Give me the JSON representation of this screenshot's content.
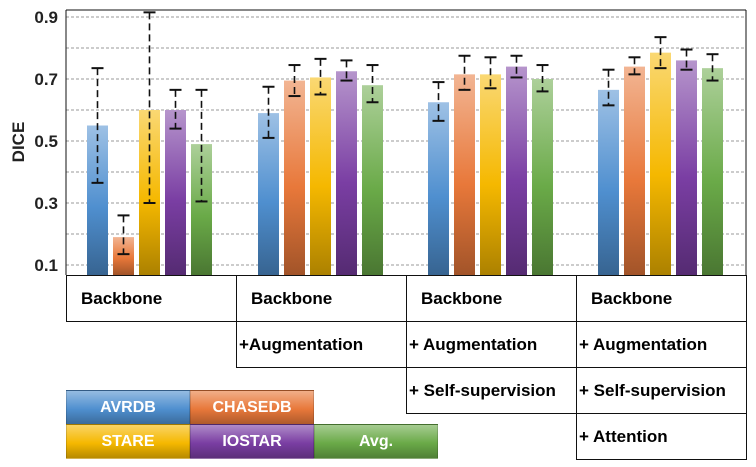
{
  "chart_data": {
    "type": "bar",
    "ylabel": "DICE",
    "yticks": [
      "0.1",
      "0.3",
      "0.5",
      "0.7",
      "0.9"
    ],
    "ylim": [
      0.1,
      0.9
    ],
    "grid": "dashed horizontal",
    "groups": [
      {
        "lines": [
          "Backbone"
        ]
      },
      {
        "lines": [
          "Backbone",
          "+Augmentation"
        ]
      },
      {
        "lines": [
          "Backbone",
          "+ Augmentation",
          "+ Self-supervision"
        ]
      },
      {
        "lines": [
          "Backbone",
          "+ Augmentation",
          "+ Self-supervision",
          "+ Attention"
        ]
      }
    ],
    "series": [
      {
        "name": "AVRDB",
        "color": "#4f8fcf",
        "values": [
          0.55,
          0.59,
          0.625,
          0.665
        ],
        "err_low": [
          0.365,
          0.51,
          0.565,
          0.615
        ],
        "err_high": [
          0.735,
          0.675,
          0.69,
          0.73
        ]
      },
      {
        "name": "CHASEDB",
        "color": "#e8783a",
        "values": [
          0.19,
          0.695,
          0.715,
          0.74
        ],
        "err_low": [
          0.135,
          0.645,
          0.665,
          0.715
        ],
        "err_high": [
          0.26,
          0.745,
          0.775,
          0.77
        ]
      },
      {
        "name": "STARE",
        "color": "#f5b800",
        "values": [
          0.6,
          0.705,
          0.715,
          0.785
        ],
        "err_low": [
          0.3,
          0.65,
          0.67,
          0.735
        ],
        "err_high": [
          0.915,
          0.765,
          0.77,
          0.835
        ]
      },
      {
        "name": "IOSTAR",
        "color": "#7a3ea3",
        "values": [
          0.6,
          0.725,
          0.74,
          0.76
        ],
        "err_low": [
          0.54,
          0.695,
          0.705,
          0.73
        ],
        "err_high": [
          0.665,
          0.76,
          0.775,
          0.795
        ]
      },
      {
        "name": "Avg.",
        "color": "#6aaa48",
        "values": [
          0.49,
          0.68,
          0.7,
          0.735
        ],
        "err_low": [
          0.305,
          0.625,
          0.66,
          0.695
        ],
        "err_high": [
          0.665,
          0.745,
          0.745,
          0.78
        ]
      }
    ]
  }
}
